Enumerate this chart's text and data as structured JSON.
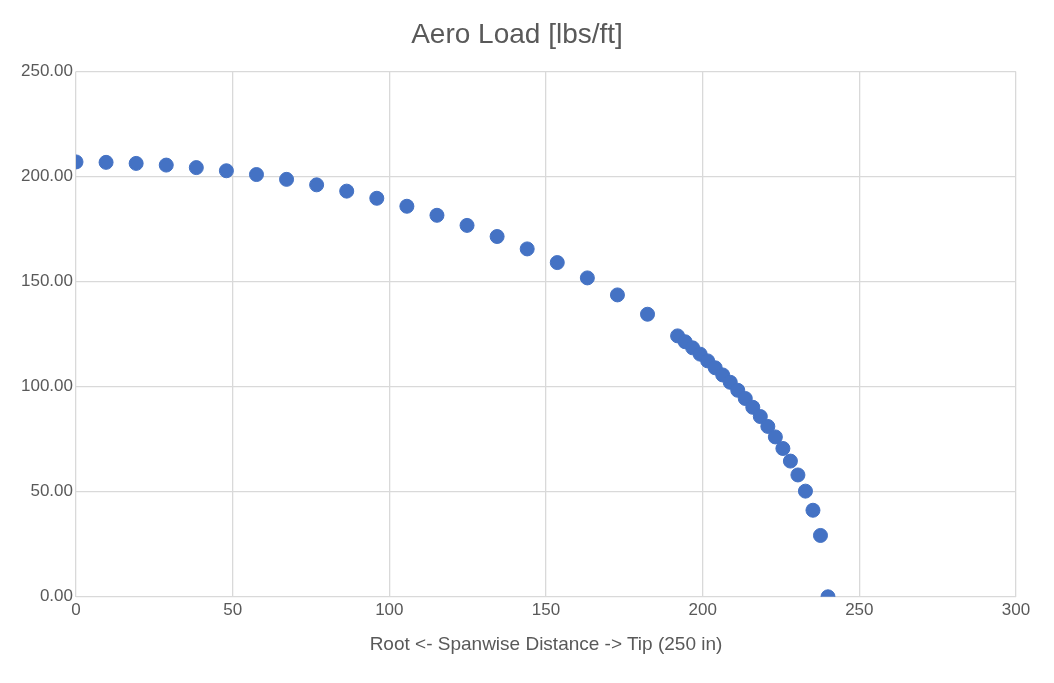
{
  "chart_data": {
    "type": "scatter",
    "title": "Aero Load [lbs/ft]",
    "xlabel": "Root <- Spanwise Distance -> Tip (250 in)",
    "x": [
      0,
      9.6,
      19.2,
      28.8,
      38.4,
      48,
      57.6,
      67.2,
      76.8,
      86.4,
      96,
      105.6,
      115.2,
      124.8,
      134.4,
      144,
      153.6,
      163.2,
      172.8,
      182.4,
      192,
      194.4,
      196.8,
      199.2,
      201.6,
      204,
      206.4,
      208.8,
      211.2,
      213.6,
      216,
      218.4,
      220.8,
      223.2,
      225.6,
      228,
      230.4,
      232.8,
      235.2,
      237.6,
      240
    ],
    "series": [
      {
        "color": "#4472c4",
        "values": [
          207,
          206.8,
          206.3,
          205.5,
          204.3,
          202.8,
          201.0,
          198.7,
          196.1,
          193.1,
          189.7,
          185.9,
          181.6,
          176.8,
          171.5,
          165.6,
          159.1,
          151.8,
          143.7,
          134.5,
          124.2,
          121.4,
          118.5,
          115.5,
          112.3,
          109.0,
          105.6,
          102.1,
          98.3,
          94.4,
          90.2,
          85.8,
          81.1,
          76.1,
          70.6,
          64.6,
          58.0,
          50.3,
          41.2,
          29.2,
          0
        ]
      }
    ],
    "xlim": [
      0,
      300
    ],
    "xticks": [
      0,
      50,
      100,
      150,
      200,
      250,
      300
    ],
    "ylim": [
      0,
      250
    ],
    "yticks": [
      {
        "value": 0,
        "label": "0.00"
      },
      {
        "value": 50,
        "label": "50.00"
      },
      {
        "value": 100,
        "label": "100.00"
      },
      {
        "value": 150,
        "label": "150.00"
      },
      {
        "value": 200,
        "label": "200.00"
      },
      {
        "value": 250,
        "label": "250.00"
      }
    ],
    "grid": true,
    "legend": false,
    "marker": "circle"
  }
}
